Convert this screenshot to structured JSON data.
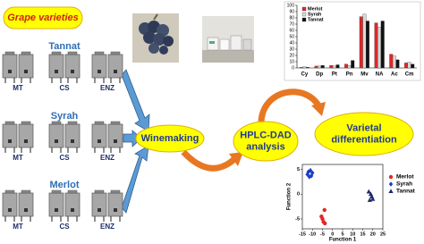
{
  "diagram": {
    "title": "Grape varieties",
    "varieties": [
      {
        "name": "Tannat",
        "treatments": [
          "MT",
          "CS",
          "ENZ"
        ]
      },
      {
        "name": "Syrah",
        "treatments": [
          "MT",
          "CS",
          "ENZ"
        ]
      },
      {
        "name": "Merlot",
        "treatments": [
          "MT",
          "CS",
          "ENZ"
        ]
      }
    ],
    "steps": [
      [
        "Winemaking"
      ],
      [
        "HPLC-DAD",
        "analysis"
      ],
      [
        "Varietal",
        "differentiation"
      ]
    ]
  },
  "chart_data": [
    {
      "type": "bar",
      "categories": [
        "Cy",
        "Dp",
        "Pt",
        "Pn",
        "Mv",
        "NA",
        "Ac",
        "Cm"
      ],
      "series": [
        {
          "name": "Merlot",
          "color": "#e32626",
          "values": [
            1,
            3,
            4,
            6,
            82,
            72,
            22,
            8
          ]
        },
        {
          "name": "Syrah",
          "color": "#d9d9d9",
          "values": [
            2,
            3,
            3,
            4,
            86,
            65,
            19,
            9
          ]
        },
        {
          "name": "Tannat",
          "color": "#111111",
          "values": [
            1,
            4,
            5,
            12,
            75,
            75,
            13,
            6
          ]
        }
      ],
      "ylim": [
        0,
        100
      ],
      "yticks": [
        0,
        10,
        20,
        30,
        40,
        50,
        60,
        70,
        80,
        90,
        100
      ]
    },
    {
      "type": "scatter",
      "x_label": "Function 1",
      "y_label": "Function 2",
      "series": [
        {
          "name": "Merlot",
          "color": "#e32626",
          "marker": "circle",
          "x": [
            -4,
            -5.5,
            -5,
            -4.5,
            -3.8
          ],
          "y": [
            -3.2,
            -4.5,
            -5,
            -5.6,
            -5.9
          ]
        },
        {
          "name": "Syrah",
          "color": "#1a3cc8",
          "marker": "diamond",
          "x": [
            -12,
            -11,
            -10,
            -11.5,
            -10.5,
            -12.5
          ],
          "y": [
            4.5,
            4.8,
            4.3,
            3.5,
            3.7,
            4
          ]
        },
        {
          "name": "Tannat",
          "color": "#1a2a6c",
          "marker": "triangle",
          "x": [
            18,
            19,
            19.5,
            20,
            18.5
          ],
          "y": [
            0.5,
            0,
            -0.5,
            -1,
            -1.2
          ]
        }
      ],
      "xlim": [
        -15,
        25
      ],
      "xticks": [
        -15,
        -10,
        -5,
        0,
        5,
        10,
        15,
        20,
        25
      ],
      "ylim": [
        -7,
        6
      ],
      "yticks": [
        -5,
        0,
        5
      ]
    }
  ]
}
